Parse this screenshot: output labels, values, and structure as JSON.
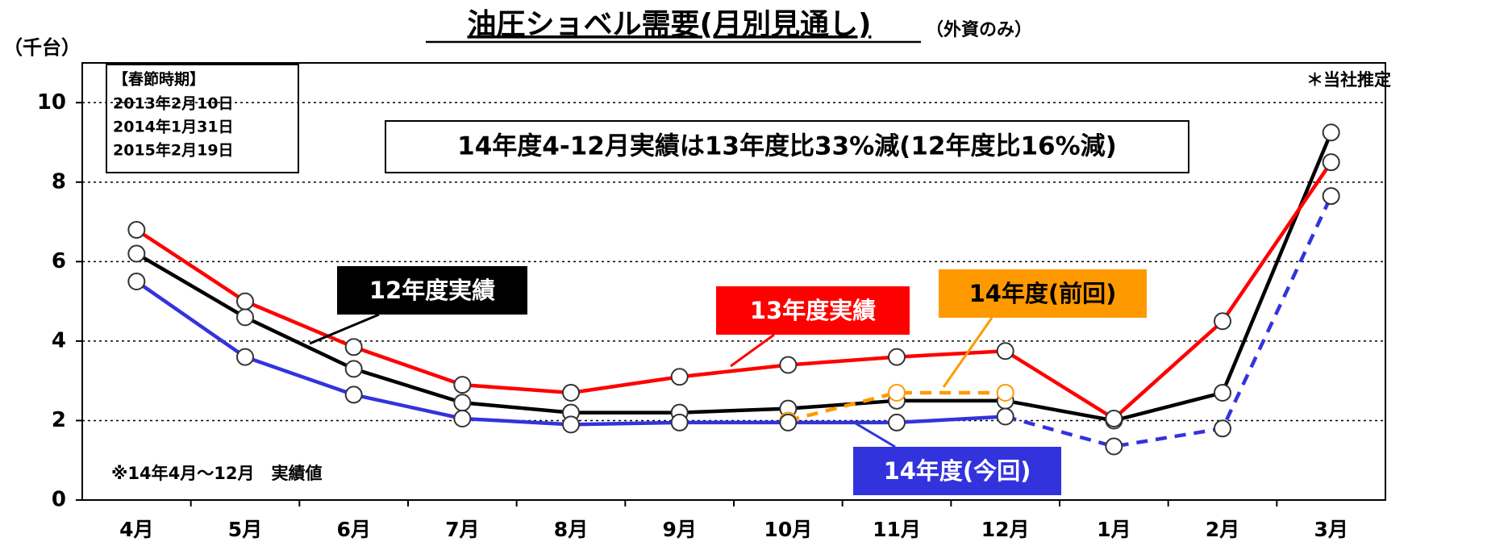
{
  "chart_data": {
    "type": "line",
    "title": "油圧ショベル需要(月別見通し)",
    "subtitle": "（外資のみ）",
    "y_label": "（千台）",
    "estimate_note": "＊当社推定",
    "footnote": "※14年4月～12月　実績値",
    "annotation": "14年度4-12月実績は13年度比33%減(12年度比16%減)",
    "spring_festival": {
      "title": "【春節時期】",
      "dates": [
        "2013年2月10日",
        "2014年1月31日",
        "2015年2月19日"
      ]
    },
    "categories": [
      "4月",
      "5月",
      "6月",
      "7月",
      "8月",
      "9月",
      "10月",
      "11月",
      "12月",
      "1月",
      "2月",
      "3月"
    ],
    "ylim": [
      0,
      11
    ],
    "yticks": [
      0,
      2,
      4,
      6,
      8,
      10
    ],
    "grid": true,
    "series": [
      {
        "name": "12年度実績",
        "color": "#000000",
        "values": [
          6.2,
          4.6,
          3.3,
          2.45,
          2.2,
          2.2,
          2.3,
          2.5,
          2.5,
          2.0,
          2.7,
          9.25
        ]
      },
      {
        "name": "13年度実績",
        "color": "#ff0000",
        "values": [
          6.8,
          5.0,
          3.85,
          2.9,
          2.7,
          3.1,
          3.4,
          3.6,
          3.75,
          2.05,
          4.5,
          8.5
        ]
      },
      {
        "name": "14年度(前回)",
        "color": "#ff9900",
        "dashed": true,
        "values": [
          null,
          null,
          null,
          null,
          null,
          null,
          2.0,
          2.7,
          2.7,
          null,
          null,
          null
        ]
      },
      {
        "name": "14年度(今回)",
        "color": "#3333dd",
        "dash_from": 8,
        "values": [
          5.5,
          3.6,
          2.65,
          2.05,
          1.9,
          1.95,
          1.95,
          1.95,
          2.1,
          1.35,
          1.8,
          7.65
        ]
      }
    ]
  }
}
